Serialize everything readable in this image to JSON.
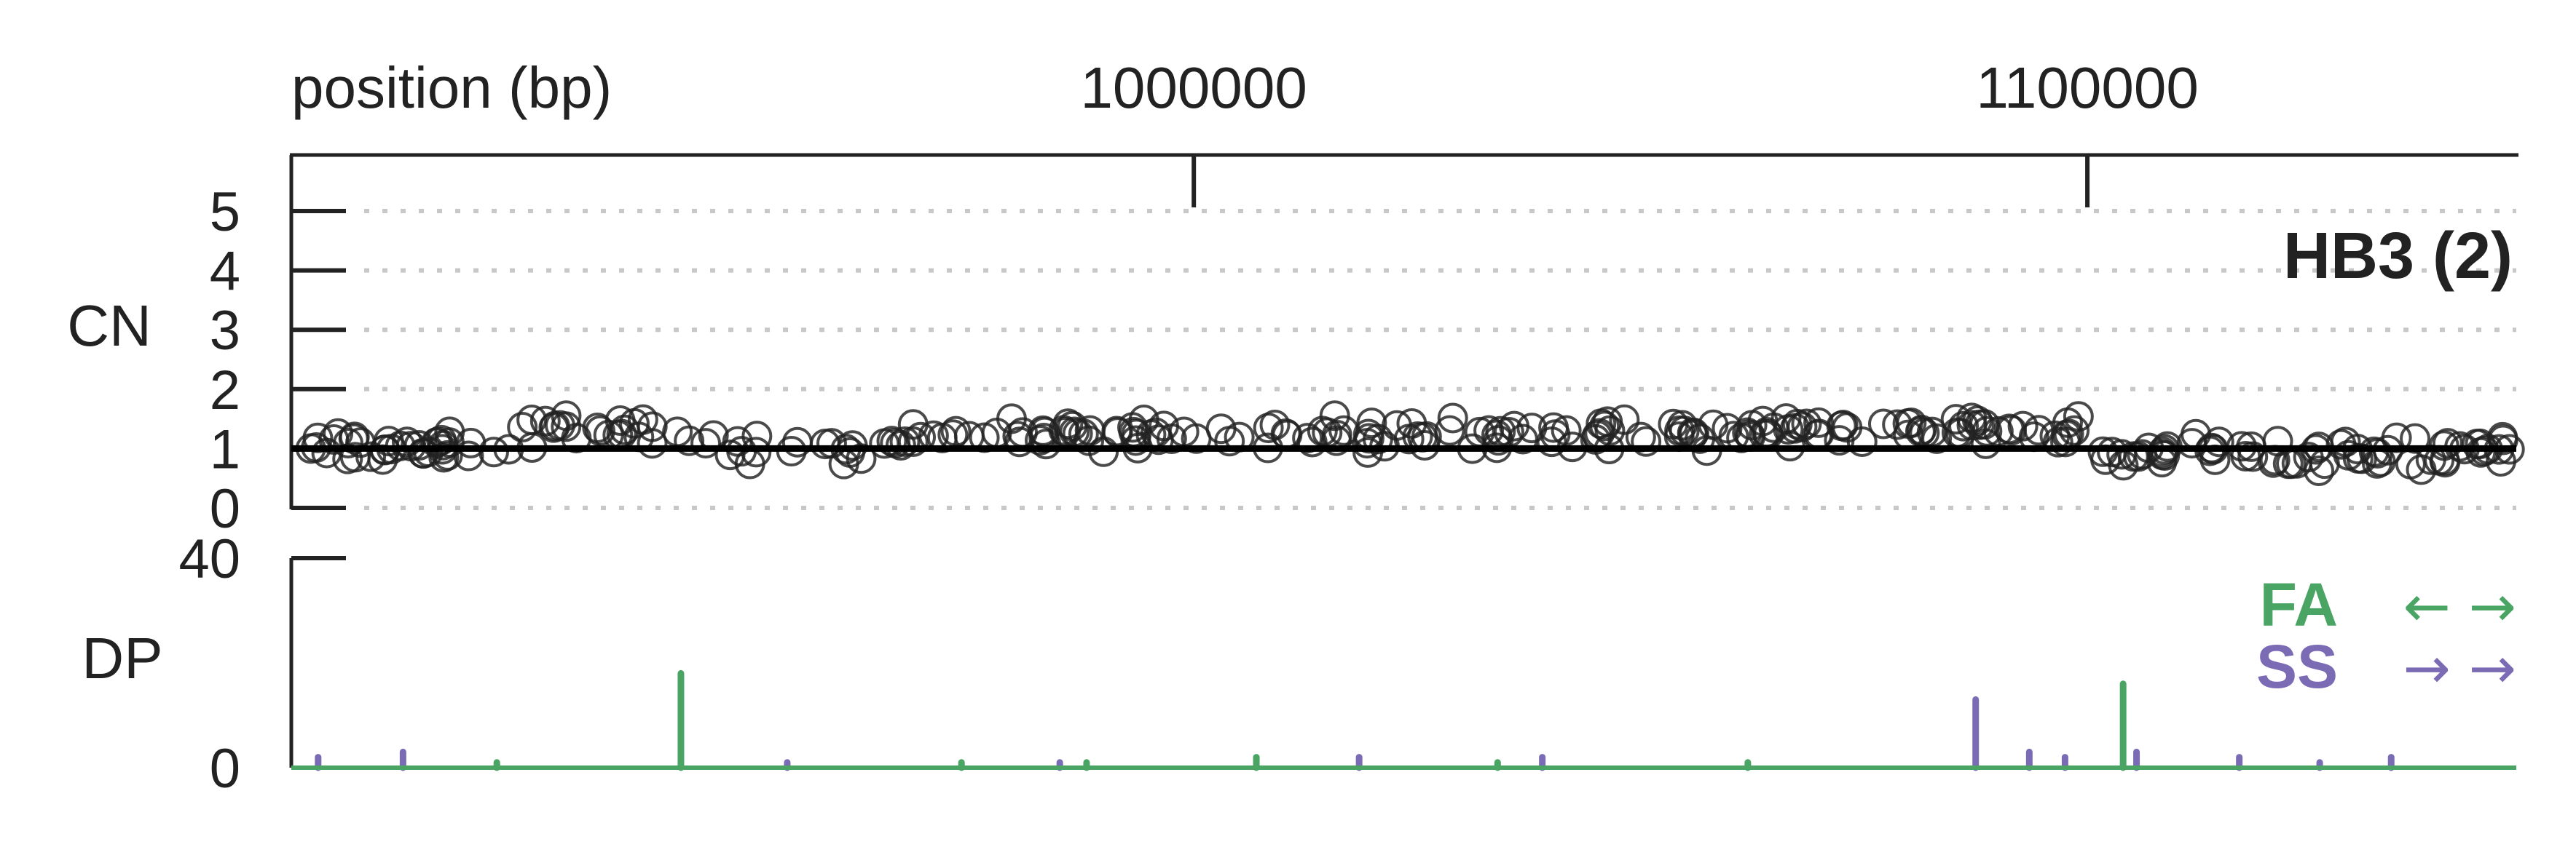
{
  "chart_data": [
    {
      "panel": "CN",
      "type": "scatter",
      "xlabel": "position (bp)",
      "ylabel": "CN",
      "title": "HB3 (2)",
      "x_ticks": [
        1000000,
        1100000
      ],
      "x_tick_labels": [
        "1000000",
        "1100000"
      ],
      "xlim": [
        899000,
        1148000
      ],
      "ylim": [
        0,
        5
      ],
      "y_ticks": [
        0,
        1,
        2,
        3,
        4,
        5
      ],
      "y_tick_labels": [
        "0",
        "1",
        "2",
        "3",
        "4",
        "5"
      ],
      "grid": "dotted horizontal",
      "segment_value": 1,
      "segment_range": [
        899000,
        1148000
      ],
      "points": {
        "segments": [
          {
            "x_range": [
              899000,
              924000
            ],
            "mean": 1.0,
            "n": 38
          },
          {
            "x_range": [
              924000,
              944000
            ],
            "mean": 1.3,
            "n": 24
          },
          {
            "x_range": [
              944000,
              966000
            ],
            "mean": 1.0,
            "n": 18
          },
          {
            "x_range": [
              966000,
              1066000
            ],
            "mean": 1.25,
            "n": 130
          },
          {
            "x_range": [
              1066000,
              1100000
            ],
            "mean": 1.3,
            "n": 50
          },
          {
            "x_range": [
              1100000,
              1148000
            ],
            "mean": 0.95,
            "n": 70
          }
        ],
        "spread": 0.18
      },
      "point_color": "#222222"
    },
    {
      "panel": "DP",
      "type": "bar",
      "ylabel": "DP",
      "ylim": [
        0,
        40
      ],
      "y_ticks": [
        0,
        40
      ],
      "y_tick_labels": [
        "0",
        "40"
      ],
      "legend": [
        {
          "name": "FA",
          "arrows": "← →",
          "color": "#4aa564"
        },
        {
          "name": "SS",
          "arrows": "→ →",
          "color": "#7a6bb4"
        }
      ],
      "legend_position": "right",
      "series": [
        {
          "name": "FA",
          "color": "#4aa564",
          "x": [
            942600,
            1104000,
            1007000,
            974000,
            1034000,
            922000,
            988000,
            1062000
          ],
          "values": [
            18,
            16,
            2,
            1,
            1,
            1,
            1,
            1
          ]
        },
        {
          "name": "SS",
          "color": "#7a6bb4",
          "x": [
            1087500,
            911500,
            902000,
            1093500,
            1097500,
            1105500,
            1039000,
            1117000,
            1134000,
            1126000,
            1018500,
            954500,
            985000
          ],
          "values": [
            13,
            3,
            2,
            3,
            2,
            3,
            2,
            2,
            2,
            1,
            2,
            1,
            1
          ]
        }
      ],
      "baseline_color": "#4aa564"
    }
  ]
}
